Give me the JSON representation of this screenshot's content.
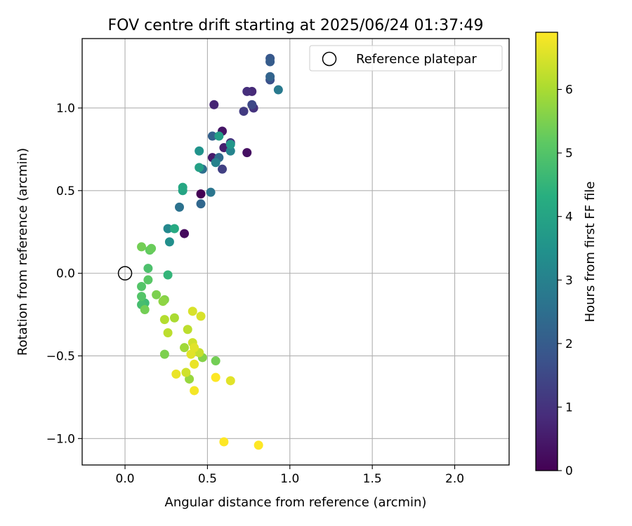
{
  "chart_data": {
    "type": "scatter",
    "title": "FOV centre drift starting at 2025/06/24 01:37:49",
    "xlabel": "Angular distance from reference (arcmin)",
    "ylabel": "Rotation from reference (arcmin)",
    "xlim": [
      -0.26,
      2.33
    ],
    "ylim": [
      -1.16,
      1.42
    ],
    "xticks": [
      {
        "value": 0.0,
        "label": "0.0"
      },
      {
        "value": 0.5,
        "label": "0.5"
      },
      {
        "value": 1.0,
        "label": "1.0"
      },
      {
        "value": 1.5,
        "label": "1.5"
      },
      {
        "value": 2.0,
        "label": "2.0"
      }
    ],
    "yticks": [
      {
        "value": -1.0,
        "label": "−1.0"
      },
      {
        "value": -0.5,
        "label": "−0.5"
      },
      {
        "value": 0.0,
        "label": "0.0"
      },
      {
        "value": 0.5,
        "label": "0.5"
      },
      {
        "value": 1.0,
        "label": "1.0"
      }
    ],
    "grid": true,
    "legend": {
      "position": "top-right",
      "entries": [
        {
          "label": "Reference platepar",
          "marker": "open-circle"
        }
      ]
    },
    "reference_point": {
      "x": 0.0,
      "y": 0.0
    },
    "colorbar": {
      "label": "Hours from first FF file",
      "colormap": "viridis",
      "range": [
        0,
        6.9
      ],
      "ticks": [
        {
          "value": 0,
          "label": "0"
        },
        {
          "value": 1,
          "label": "1"
        },
        {
          "value": 2,
          "label": "2"
        },
        {
          "value": 3,
          "label": "3"
        },
        {
          "value": 4,
          "label": "4"
        },
        {
          "value": 5,
          "label": "5"
        },
        {
          "value": 6,
          "label": "6"
        }
      ]
    },
    "points": [
      {
        "x": 0.46,
        "y": 0.48,
        "c": 0.0
      },
      {
        "x": 0.36,
        "y": 0.24,
        "c": 0.2
      },
      {
        "x": 0.74,
        "y": 0.73,
        "c": 0.3
      },
      {
        "x": 0.59,
        "y": 0.86,
        "c": 0.4
      },
      {
        "x": 0.53,
        "y": 0.7,
        "c": 0.5
      },
      {
        "x": 0.6,
        "y": 0.76,
        "c": 0.6
      },
      {
        "x": 0.54,
        "y": 1.02,
        "c": 0.7
      },
      {
        "x": 0.77,
        "y": 1.1,
        "c": 0.8
      },
      {
        "x": 0.74,
        "y": 1.1,
        "c": 0.9
      },
      {
        "x": 0.78,
        "y": 1.0,
        "c": 1.0
      },
      {
        "x": 0.64,
        "y": 0.79,
        "c": 1.0
      },
      {
        "x": 0.72,
        "y": 0.98,
        "c": 1.2
      },
      {
        "x": 0.59,
        "y": 0.63,
        "c": 1.3
      },
      {
        "x": 0.77,
        "y": 1.02,
        "c": 1.5
      },
      {
        "x": 0.88,
        "y": 1.17,
        "c": 1.7
      },
      {
        "x": 0.88,
        "y": 1.3,
        "c": 1.9
      },
      {
        "x": 0.88,
        "y": 1.28,
        "c": 2.0
      },
      {
        "x": 0.88,
        "y": 1.19,
        "c": 2.2
      },
      {
        "x": 0.53,
        "y": 0.83,
        "c": 2.1
      },
      {
        "x": 0.46,
        "y": 0.42,
        "c": 2.3
      },
      {
        "x": 0.57,
        "y": 0.7,
        "c": 2.4
      },
      {
        "x": 0.47,
        "y": 0.63,
        "c": 2.5
      },
      {
        "x": 0.33,
        "y": 0.4,
        "c": 2.6
      },
      {
        "x": 0.52,
        "y": 0.49,
        "c": 2.7
      },
      {
        "x": 0.93,
        "y": 1.11,
        "c": 2.8
      },
      {
        "x": 0.55,
        "y": 0.67,
        "c": 3.0
      },
      {
        "x": 0.64,
        "y": 0.74,
        "c": 3.1
      },
      {
        "x": 0.26,
        "y": 0.27,
        "c": 3.2
      },
      {
        "x": 0.27,
        "y": 0.19,
        "c": 3.4
      },
      {
        "x": 0.45,
        "y": 0.74,
        "c": 3.5
      },
      {
        "x": 0.64,
        "y": 0.78,
        "c": 3.6
      },
      {
        "x": 0.57,
        "y": 0.83,
        "c": 3.8
      },
      {
        "x": 0.45,
        "y": 0.64,
        "c": 3.9
      },
      {
        "x": 0.35,
        "y": 0.5,
        "c": 4.0
      },
      {
        "x": 0.35,
        "y": 0.52,
        "c": 4.1
      },
      {
        "x": 0.3,
        "y": 0.27,
        "c": 4.2
      },
      {
        "x": 0.26,
        "y": -0.01,
        "c": 4.5
      },
      {
        "x": 0.12,
        "y": -0.18,
        "c": 4.7
      },
      {
        "x": 0.1,
        "y": -0.19,
        "c": 4.8
      },
      {
        "x": 0.14,
        "y": 0.03,
        "c": 4.9
      },
      {
        "x": 0.1,
        "y": -0.08,
        "c": 5.0
      },
      {
        "x": 0.1,
        "y": -0.14,
        "c": 5.0
      },
      {
        "x": 0.14,
        "y": -0.04,
        "c": 5.1
      },
      {
        "x": 0.15,
        "y": 0.14,
        "c": 5.2
      },
      {
        "x": 0.16,
        "y": 0.15,
        "c": 5.3
      },
      {
        "x": 0.1,
        "y": 0.16,
        "c": 5.4
      },
      {
        "x": 0.12,
        "y": -0.22,
        "c": 5.4
      },
      {
        "x": 0.19,
        "y": -0.13,
        "c": 5.5
      },
      {
        "x": 0.24,
        "y": -0.16,
        "c": 5.6
      },
      {
        "x": 0.23,
        "y": -0.17,
        "c": 5.7
      },
      {
        "x": 0.24,
        "y": -0.49,
        "c": 5.5
      },
      {
        "x": 0.55,
        "y": -0.53,
        "c": 5.4
      },
      {
        "x": 0.47,
        "y": -0.51,
        "c": 5.6
      },
      {
        "x": 0.39,
        "y": -0.64,
        "c": 5.8
      },
      {
        "x": 0.36,
        "y": -0.45,
        "c": 5.9
      },
      {
        "x": 0.3,
        "y": -0.27,
        "c": 6.0
      },
      {
        "x": 0.24,
        "y": -0.28,
        "c": 6.1
      },
      {
        "x": 0.26,
        "y": -0.36,
        "c": 6.2
      },
      {
        "x": 0.38,
        "y": -0.34,
        "c": 6.2
      },
      {
        "x": 0.45,
        "y": -0.48,
        "c": 6.3
      },
      {
        "x": 0.37,
        "y": -0.6,
        "c": 6.4
      },
      {
        "x": 0.41,
        "y": -0.42,
        "c": 6.4
      },
      {
        "x": 0.46,
        "y": -0.26,
        "c": 6.5
      },
      {
        "x": 0.41,
        "y": -0.23,
        "c": 6.5
      },
      {
        "x": 0.42,
        "y": -0.45,
        "c": 6.6
      },
      {
        "x": 0.4,
        "y": -0.49,
        "c": 6.6
      },
      {
        "x": 0.42,
        "y": -0.55,
        "c": 6.7
      },
      {
        "x": 0.31,
        "y": -0.61,
        "c": 6.7
      },
      {
        "x": 0.42,
        "y": -0.71,
        "c": 6.8
      },
      {
        "x": 0.64,
        "y": -0.65,
        "c": 6.6
      },
      {
        "x": 0.55,
        "y": -0.63,
        "c": 6.9
      },
      {
        "x": 0.6,
        "y": -1.02,
        "c": 6.9
      },
      {
        "x": 0.81,
        "y": -1.04,
        "c": 6.9
      }
    ]
  }
}
